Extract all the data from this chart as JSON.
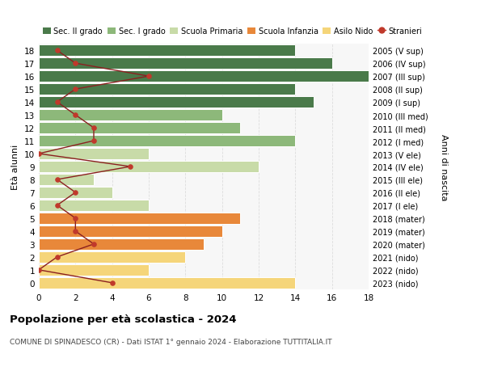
{
  "ages": [
    0,
    1,
    2,
    3,
    4,
    5,
    6,
    7,
    8,
    9,
    10,
    11,
    12,
    13,
    14,
    15,
    16,
    17,
    18
  ],
  "right_labels": [
    "2023 (nido)",
    "2022 (nido)",
    "2021 (nido)",
    "2020 (mater)",
    "2019 (mater)",
    "2018 (mater)",
    "2017 (I ele)",
    "2016 (II ele)",
    "2015 (III ele)",
    "2014 (IV ele)",
    "2013 (V ele)",
    "2012 (I med)",
    "2011 (II med)",
    "2010 (III med)",
    "2009 (I sup)",
    "2008 (II sup)",
    "2007 (III sup)",
    "2006 (IV sup)",
    "2005 (V sup)"
  ],
  "bar_values": [
    14,
    6,
    8,
    9,
    10,
    11,
    6,
    4,
    3,
    12,
    6,
    14,
    11,
    10,
    15,
    14,
    18,
    16,
    14
  ],
  "stranieri_values": [
    4,
    0,
    1,
    3,
    2,
    2,
    1,
    2,
    1,
    5,
    0,
    3,
    3,
    2,
    1,
    2,
    6,
    2,
    1
  ],
  "bar_colors": [
    "#f5d57a",
    "#f5d57a",
    "#f5d57a",
    "#e8883a",
    "#e8883a",
    "#e8883a",
    "#c8dba8",
    "#c8dba8",
    "#c8dba8",
    "#c8dba8",
    "#c8dba8",
    "#8db87a",
    "#8db87a",
    "#8db87a",
    "#4a7a4a",
    "#4a7a4a",
    "#4a7a4a",
    "#4a7a4a",
    "#4a7a4a"
  ],
  "legend_labels": [
    "Sec. II grado",
    "Sec. I grado",
    "Scuola Primaria",
    "Scuola Infanzia",
    "Asilo Nido",
    "Stranieri"
  ],
  "legend_colors": [
    "#4a7a4a",
    "#8db87a",
    "#c8dba8",
    "#e8883a",
    "#f5d57a",
    "#c0392b"
  ],
  "title": "Popolazione per età scolastica - 2024",
  "subtitle": "COMUNE DI SPINADESCO (CR) - Dati ISTAT 1° gennaio 2024 - Elaborazione TUTTITALIA.IT",
  "ylabel_left": "Età alunni",
  "ylabel_right": "Anni di nascita",
  "xlim": [
    0,
    18
  ],
  "background_color": "#ffffff",
  "plot_bg_color": "#f7f7f7",
  "grid_color": "#dddddd",
  "stranieri_color": "#c0392b",
  "line_color": "#8b2020"
}
